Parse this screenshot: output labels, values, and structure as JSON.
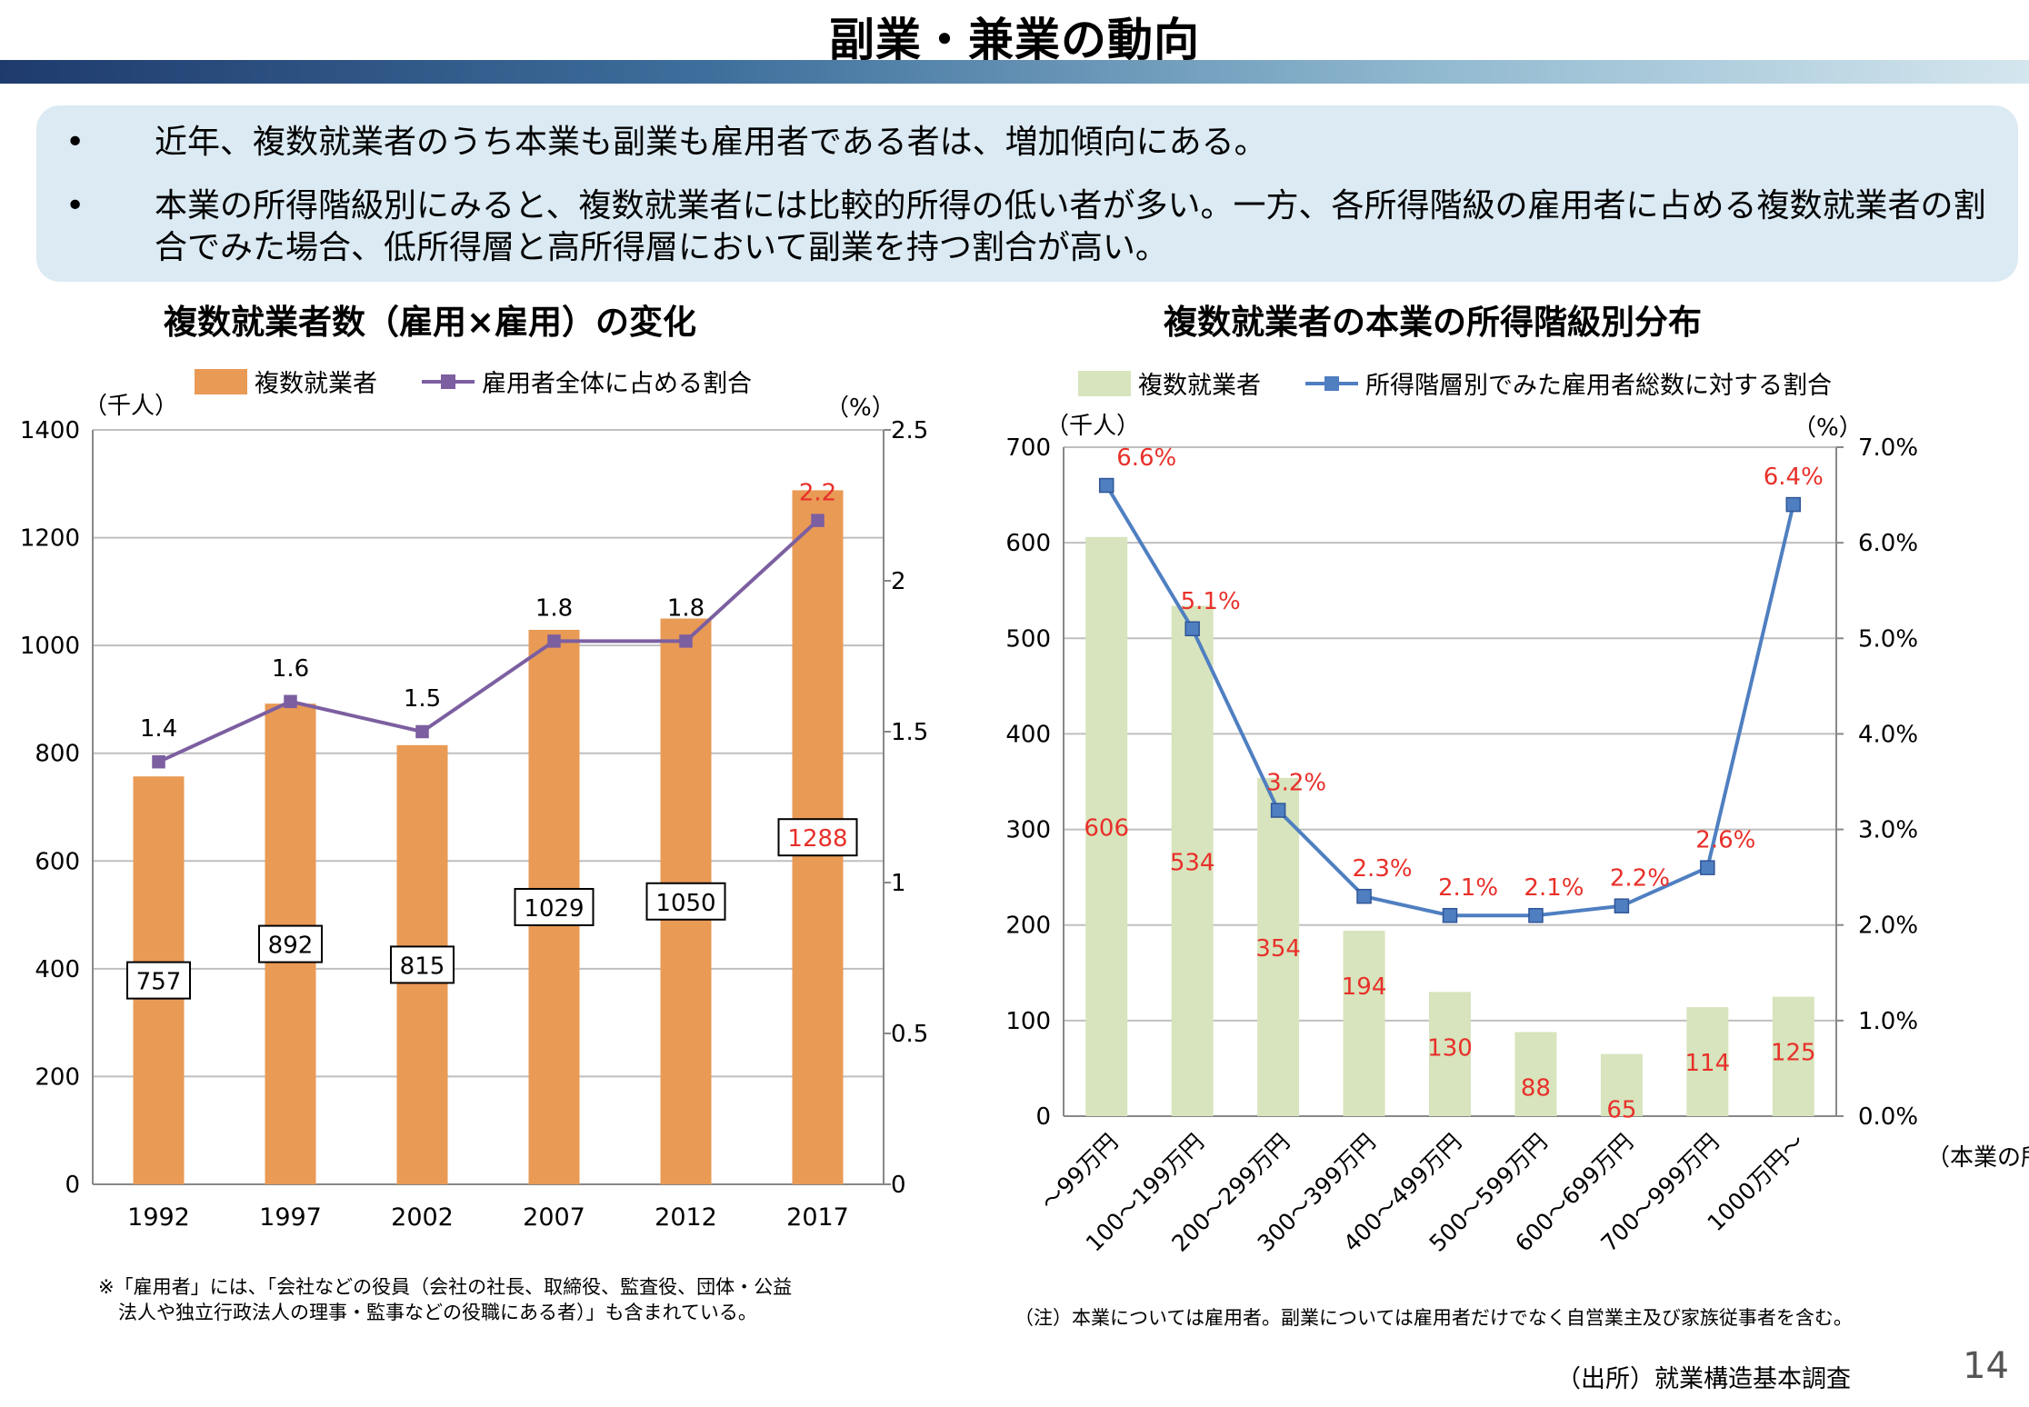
{
  "page": {
    "title": "副業・兼業の動向",
    "bullets": [
      "近年、複数就業者のうち本業も副業も雇用者である者は、増加傾向にある。",
      "本業の所得階級別にみると、複数就業者には比較的所得の低い者が多い。一方、各所得階級の雇用者に占める複数就業者の割合でみた場合、低所得層と高所得層において副業を持つ割合が高い。"
    ],
    "bullet_symbol": "•",
    "page_number": "14",
    "source": "（出所）就業構造基本調査"
  },
  "chart_data": [
    {
      "type": "bar",
      "title": "複数就業者数（雇用×雇用）の変化",
      "categories": [
        "1992",
        "1997",
        "2002",
        "2007",
        "2012",
        "2017"
      ],
      "series": [
        {
          "name": "複数就業者",
          "type": "bar",
          "axis": "left",
          "color": "#e99a55",
          "values": [
            757,
            892,
            815,
            1029,
            1050,
            1288
          ],
          "labels": [
            "757",
            "892",
            "815",
            "1029",
            "1050",
            "1288"
          ]
        },
        {
          "name": "雇用者全体に占める割合",
          "type": "line",
          "axis": "right",
          "color": "#7c5fa0",
          "values": [
            1.4,
            1.6,
            1.5,
            1.8,
            1.8,
            2.2
          ],
          "labels": [
            "1.4",
            "1.6",
            "1.5",
            "1.8",
            "1.8",
            "2.2"
          ]
        }
      ],
      "ylabel_left": "（千人）",
      "ylabel_right": "（%）",
      "ylim_left": [
        0,
        1400
      ],
      "ylim_right": [
        0,
        2.5
      ],
      "yticks_left": [
        "0",
        "200",
        "400",
        "600",
        "800",
        "1000",
        "1200",
        "1400"
      ],
      "yticks_right": [
        "0",
        "0.5",
        "1",
        "1.5",
        "2",
        "2.5"
      ],
      "grid": true,
      "highlight_color": "#e8302a",
      "note": "※「雇用者」には、「会社などの役員（会社の社長、取締役、監査役、団体・公益法人や独立行政法人の理事・監事などの役職にある者）」も含まれている。"
    },
    {
      "type": "bar",
      "title": "複数就業者の本業の所得階級別分布",
      "categories": [
        "～99万円",
        "100～199万円",
        "200～299万円",
        "300～399万円",
        "400～499万円",
        "500～599万円",
        "600～699万円",
        "700～999万円",
        "1000万円～"
      ],
      "series": [
        {
          "name": "複数就業者",
          "type": "bar",
          "axis": "left",
          "color": "#d7e4bd",
          "values": [
            606,
            534,
            354,
            194,
            130,
            88,
            65,
            114,
            125
          ],
          "labels": [
            "606",
            "534",
            "354",
            "194",
            "130",
            "88",
            "65",
            "114",
            "125"
          ]
        },
        {
          "name": "所得階層別でみた雇用者総数に対する割合",
          "type": "line",
          "axis": "right",
          "color": "#4f7fc1",
          "values": [
            6.6,
            5.1,
            3.2,
            2.3,
            2.1,
            2.1,
            2.2,
            2.6,
            6.4
          ],
          "labels": [
            "6.6%",
            "5.1%",
            "3.2%",
            "2.3%",
            "2.1%",
            "2.1%",
            "2.2%",
            "2.6%",
            "6.4%"
          ]
        }
      ],
      "ylabel_left": "（千人）",
      "ylabel_right": "（%）",
      "xlabel": "（本業の所得）",
      "ylim_left": [
        0,
        700
      ],
      "ylim_right": [
        0,
        7.0
      ],
      "yticks_left": [
        "0",
        "100",
        "200",
        "300",
        "400",
        "500",
        "600",
        "700"
      ],
      "yticks_right": [
        "0.0%",
        "1.0%",
        "2.0%",
        "3.0%",
        "4.0%",
        "5.0%",
        "6.0%",
        "7.0%"
      ],
      "grid": true,
      "label_color": "#e8302a",
      "note": "（注）本業については雇用者。副業については雇用者だけでなく自営業主及び家族従事者を含む。"
    }
  ]
}
